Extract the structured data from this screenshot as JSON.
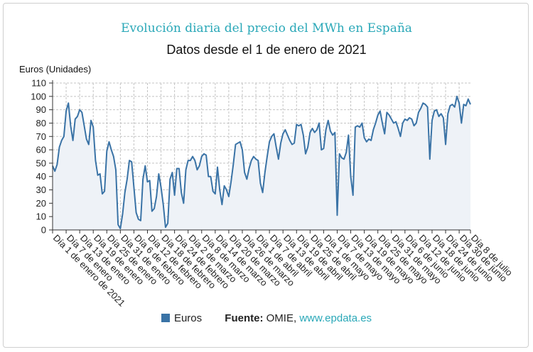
{
  "chart_data": {
    "type": "area",
    "title": "Evolución diaria del precio del MWh en España",
    "subtitle": "Datos desde el 1 de enero de 2021",
    "ylabel": "Euros (Unidades)",
    "ylim": [
      0,
      110
    ],
    "yticks": [
      0,
      10,
      20,
      30,
      40,
      50,
      60,
      70,
      80,
      90,
      100,
      110
    ],
    "xlabels": [
      "Día 1 de enero de 2021",
      "Día 7 de enero",
      "Día 13 de enero",
      "Día 19 de enero",
      "Día 25 de enero",
      "Día 31 de enero",
      "Día 6 de febrero",
      "Día 12 de febrero",
      "Día 18 de febrero",
      "Día 24 de febrero",
      "Día 2 de marzo",
      "Día 8 de marzo",
      "Día 14 de marzo",
      "Día 20 de marzo",
      "Día 26 de marzo",
      "Día 1 de abril",
      "Día 7 de abril",
      "Día 13 de abril",
      "Día 19 de abril",
      "Día 25 de abril",
      "Día 1 de mayo",
      "Día 7 de mayo",
      "Día 13 de mayo",
      "Día 19 de mayo",
      "Día 25 de mayo",
      "Día 31 de mayo",
      "Día 6 de junio",
      "Día 12 de junio",
      "Día 18 de junio",
      "Día 24 de junio",
      "Día 30 de junio",
      "Día 8 de julio"
    ],
    "grid": true,
    "legend_position": "bottom",
    "series": [
      {
        "name": "Euros",
        "color": "#3a73a6",
        "values": [
          48,
          44,
          49,
          62,
          67,
          70,
          89,
          95,
          78,
          67,
          83,
          85,
          90,
          88,
          78,
          68,
          64,
          82,
          77,
          52,
          41,
          42,
          27,
          29,
          59,
          66,
          60,
          55,
          45,
          4,
          1,
          12,
          28,
          38,
          52,
          51,
          32,
          13,
          8,
          7,
          38,
          48,
          36,
          37,
          14,
          16,
          25,
          42,
          32,
          19,
          2,
          5,
          38,
          43,
          26,
          46,
          46,
          28,
          20,
          45,
          52,
          52,
          55,
          52,
          45,
          48,
          55,
          57,
          56,
          40,
          40,
          29,
          27,
          47,
          30,
          19,
          33,
          30,
          25,
          36,
          49,
          64,
          65,
          66,
          60,
          43,
          38,
          46,
          52,
          55,
          53,
          52,
          35,
          28,
          43,
          55,
          66,
          70,
          72,
          62,
          53,
          65,
          72,
          75,
          71,
          67,
          64,
          65,
          79,
          78,
          79,
          71,
          57,
          62,
          73,
          76,
          73,
          75,
          80,
          60,
          61,
          75,
          82,
          74,
          71,
          73,
          11,
          57,
          54,
          53,
          58,
          71,
          40,
          26,
          77,
          78,
          77,
          80,
          69,
          66,
          68,
          67,
          75,
          80,
          86,
          89,
          80,
          72,
          88,
          86,
          83,
          80,
          81,
          76,
          70,
          80,
          83,
          82,
          84,
          83,
          78,
          80,
          88,
          91,
          95,
          94,
          92,
          53,
          82,
          89,
          90,
          85,
          87,
          84,
          64,
          87,
          93,
          94,
          92,
          100,
          95,
          80,
          94,
          93,
          98,
          94
        ]
      }
    ]
  },
  "legend": {
    "label": "Euros"
  },
  "source": {
    "label": "Fuente:",
    "name": "OMIE,",
    "site": "www.epdata.es"
  }
}
